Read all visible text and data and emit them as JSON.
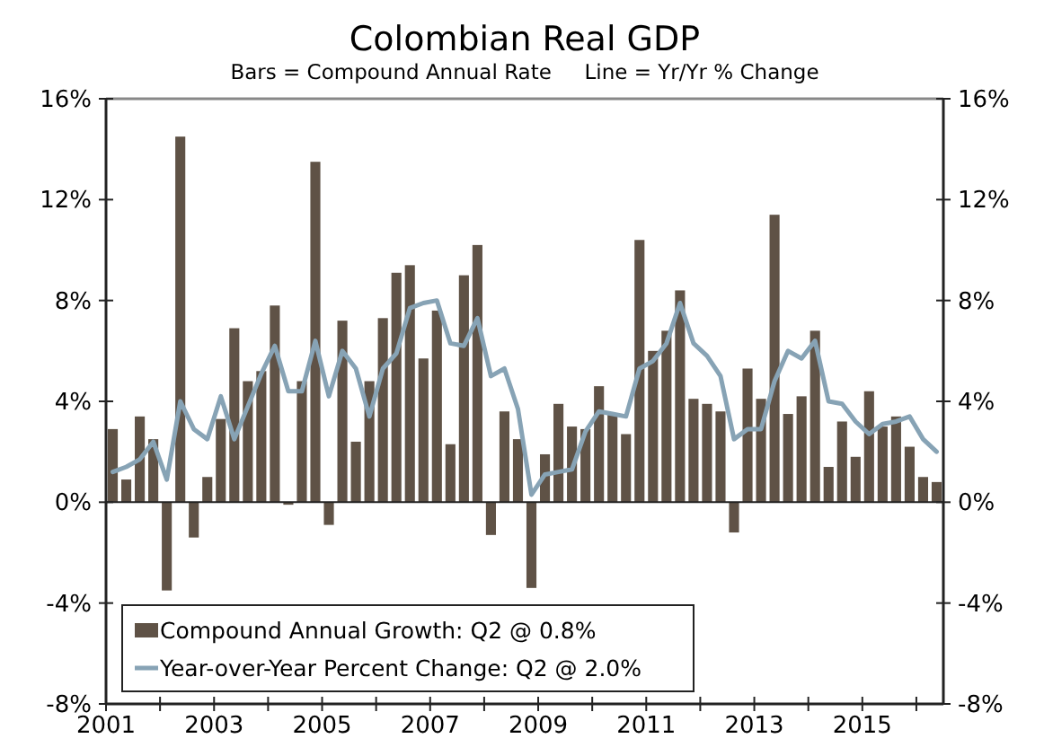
{
  "chart_data": {
    "type": "bar",
    "title": "Colombian Real GDP",
    "subtitle": "Bars = Compound Annual Rate     Line = Yr/Yr % Change",
    "x": [
      2001.125,
      2001.375,
      2001.625,
      2001.875,
      2002.125,
      2002.375,
      2002.625,
      2002.875,
      2003.125,
      2003.375,
      2003.625,
      2003.875,
      2004.125,
      2004.375,
      2004.625,
      2004.875,
      2005.125,
      2005.375,
      2005.625,
      2005.875,
      2006.125,
      2006.375,
      2006.625,
      2006.875,
      2007.125,
      2007.375,
      2007.625,
      2007.875,
      2008.125,
      2008.375,
      2008.625,
      2008.875,
      2009.125,
      2009.375,
      2009.625,
      2009.875,
      2010.125,
      2010.375,
      2010.625,
      2010.875,
      2011.125,
      2011.375,
      2011.625,
      2011.875,
      2012.125,
      2012.375,
      2012.625,
      2012.875,
      2013.125,
      2013.375,
      2013.625,
      2013.875,
      2014.125,
      2014.375,
      2014.625,
      2014.875,
      2015.125,
      2015.375,
      2015.625,
      2015.875,
      2016.125,
      2016.375
    ],
    "series": [
      {
        "name": "Compound Annual Growth: Q2 @ 0.8%",
        "color": "#5f5246",
        "values": [
          2.9,
          0.9,
          3.4,
          2.5,
          -3.5,
          14.5,
          -1.4,
          1.0,
          3.3,
          6.9,
          4.8,
          5.2,
          7.8,
          -0.1,
          4.8,
          13.5,
          -0.9,
          7.2,
          2.4,
          4.8,
          7.3,
          9.1,
          9.4,
          5.7,
          7.6,
          2.3,
          9.0,
          10.2,
          -1.3,
          3.6,
          2.5,
          -3.4,
          1.9,
          3.9,
          3.0,
          2.9,
          4.6,
          3.5,
          2.7,
          10.4,
          6.0,
          6.8,
          8.4,
          4.1,
          3.9,
          3.6,
          -1.2,
          5.3,
          4.1,
          11.4,
          3.5,
          4.2,
          6.8,
          1.4,
          3.2,
          1.8,
          4.4,
          3.0,
          3.4,
          2.2,
          1.0,
          0.8
        ]
      },
      {
        "name": "Year-over-Year Percent Change: Q2 @ 2.0%",
        "type": "line",
        "color": "#87a3b5",
        "values": [
          1.2,
          1.4,
          1.7,
          2.4,
          0.9,
          4.0,
          2.9,
          2.5,
          4.2,
          2.5,
          3.8,
          5.1,
          6.2,
          4.4,
          4.4,
          6.4,
          4.2,
          6.0,
          5.3,
          3.4,
          5.3,
          5.9,
          7.7,
          7.9,
          8.0,
          6.3,
          6.2,
          7.3,
          5.0,
          5.3,
          3.7,
          0.3,
          1.1,
          1.2,
          1.3,
          2.8,
          3.6,
          3.5,
          3.4,
          5.3,
          5.6,
          6.3,
          7.9,
          6.3,
          5.8,
          5.0,
          2.5,
          2.9,
          2.9,
          4.8,
          6.0,
          5.7,
          6.4,
          4.0,
          3.9,
          3.2,
          2.7,
          3.1,
          3.2,
          3.4,
          2.5,
          2.0
        ]
      }
    ],
    "xlim": [
      2001,
      2016.5
    ],
    "xticks": [
      2001,
      {
        "value": 2002,
        "label": null
      },
      2003,
      {
        "value": 2004,
        "label": null
      },
      2005,
      {
        "value": 2006,
        "label": null
      },
      2007,
      {
        "value": 2008,
        "label": null
      },
      2009,
      {
        "value": 2010,
        "label": null
      },
      2011,
      {
        "value": 2012,
        "label": null
      },
      2013,
      {
        "value": 2014,
        "label": null
      },
      2015,
      {
        "value": 2016,
        "label": null
      }
    ],
    "ylim": [
      -8,
      16
    ],
    "yticks": [
      {
        "value": -8,
        "label": "-8%"
      },
      {
        "value": -4,
        "label": "-4%"
      },
      {
        "value": 0,
        "label": "0%"
      },
      {
        "value": 4,
        "label": "4%"
      },
      {
        "value": 8,
        "label": "8%"
      },
      {
        "value": 12,
        "label": "12%"
      },
      {
        "value": 16,
        "label": "16%"
      }
    ],
    "y2lim": [
      -8,
      16
    ],
    "y2ticks": [
      {
        "value": -8,
        "label": "-8%"
      },
      {
        "value": -4,
        "label": "-4%"
      },
      {
        "value": 0,
        "label": "0%"
      },
      {
        "value": 4,
        "label": "4%"
      },
      {
        "value": 8,
        "label": "8%"
      },
      {
        "value": 12,
        "label": "12%"
      },
      {
        "value": 16,
        "label": "16%"
      }
    ],
    "legend": "bottom left"
  }
}
